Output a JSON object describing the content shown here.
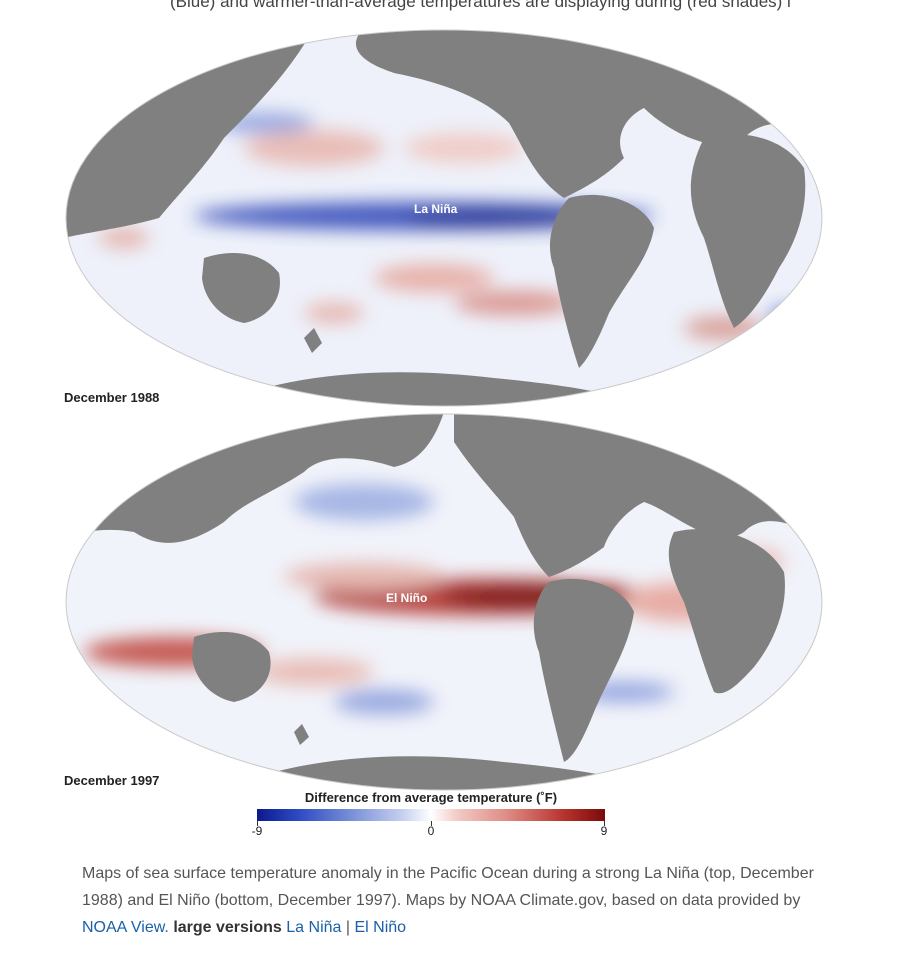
{
  "header_fragment": "(Blue) and warmer-than-average temperatures are displaying during (red shades) in",
  "maps": [
    {
      "event_label": "La Niña",
      "date_label": "December 1988"
    },
    {
      "event_label": "El Niño",
      "date_label": "December 1997"
    }
  ],
  "legend": {
    "title": "Difference from average temperature (˚F)",
    "min_label": "-9",
    "mid_label": "0",
    "max_label": "9",
    "colors": {
      "cold": "#0b1a8c",
      "neutral": "#ffffff",
      "warm": "#7a0b0b"
    }
  },
  "caption": {
    "text1": "Maps of sea surface temperature anomaly in the Pacific Ocean during a strong La Niña (top, December 1988) and El Niño (bottom, December 1997). Maps by NOAA Climate.gov, based on data provided by ",
    "link_noaa_view": "NOAA View.",
    "bold_text": "large versions",
    "link_la_nina": "La Niña",
    "separator": "|",
    "link_el_nino": "El Niño"
  },
  "colors": {
    "land": "#808080",
    "ocean_base": "#eef1fa",
    "link": "#1a5fa8"
  }
}
